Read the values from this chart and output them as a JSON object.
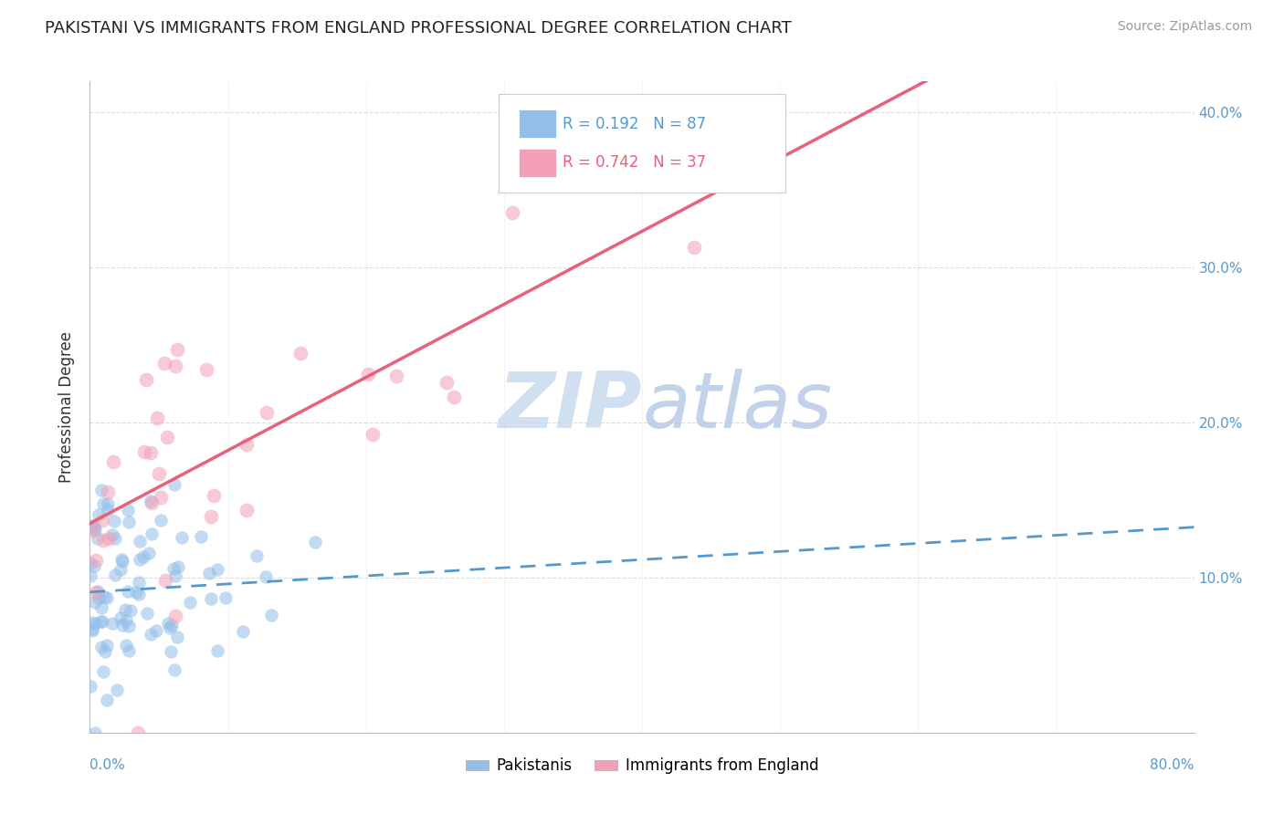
{
  "title": "PAKISTANI VS IMMIGRANTS FROM ENGLAND PROFESSIONAL DEGREE CORRELATION CHART",
  "source": "Source: ZipAtlas.com",
  "ylabel": "Professional Degree",
  "legend_label_blue": "Pakistanis",
  "legend_label_pink": "Immigrants from England",
  "legend_blue_text": "R = 0.192   N = 87",
  "legend_pink_text": "R = 0.742   N = 37",
  "xlim": [
    0.0,
    0.8
  ],
  "ylim": [
    0.0,
    0.42
  ],
  "yticks": [
    0.0,
    0.1,
    0.2,
    0.3,
    0.4
  ],
  "ytick_labels": [
    "",
    "10.0%",
    "20.0%",
    "30.0%",
    "40.0%"
  ],
  "blue_color": "#92BEE8",
  "pink_color": "#F2A0B5",
  "blue_line_color": "#5599CC",
  "pink_line_color": "#E8607A",
  "watermark_zip_color": "#B8CDE8",
  "watermark_atlas_color": "#C8D8EE",
  "background_color": "#FFFFFF",
  "grid_color": "#DDDDDD",
  "title_fontsize": 13,
  "source_fontsize": 10,
  "tick_fontsize": 11,
  "ylabel_fontsize": 12,
  "right_tick_color": "#5599CC",
  "n_blue": 87,
  "n_pink": 37,
  "r_blue": 0.192,
  "r_pink": 0.742,
  "seed": 99,
  "blue_scatter_size": 110,
  "pink_scatter_size": 130,
  "blue_alpha": 0.55,
  "pink_alpha": 0.55
}
